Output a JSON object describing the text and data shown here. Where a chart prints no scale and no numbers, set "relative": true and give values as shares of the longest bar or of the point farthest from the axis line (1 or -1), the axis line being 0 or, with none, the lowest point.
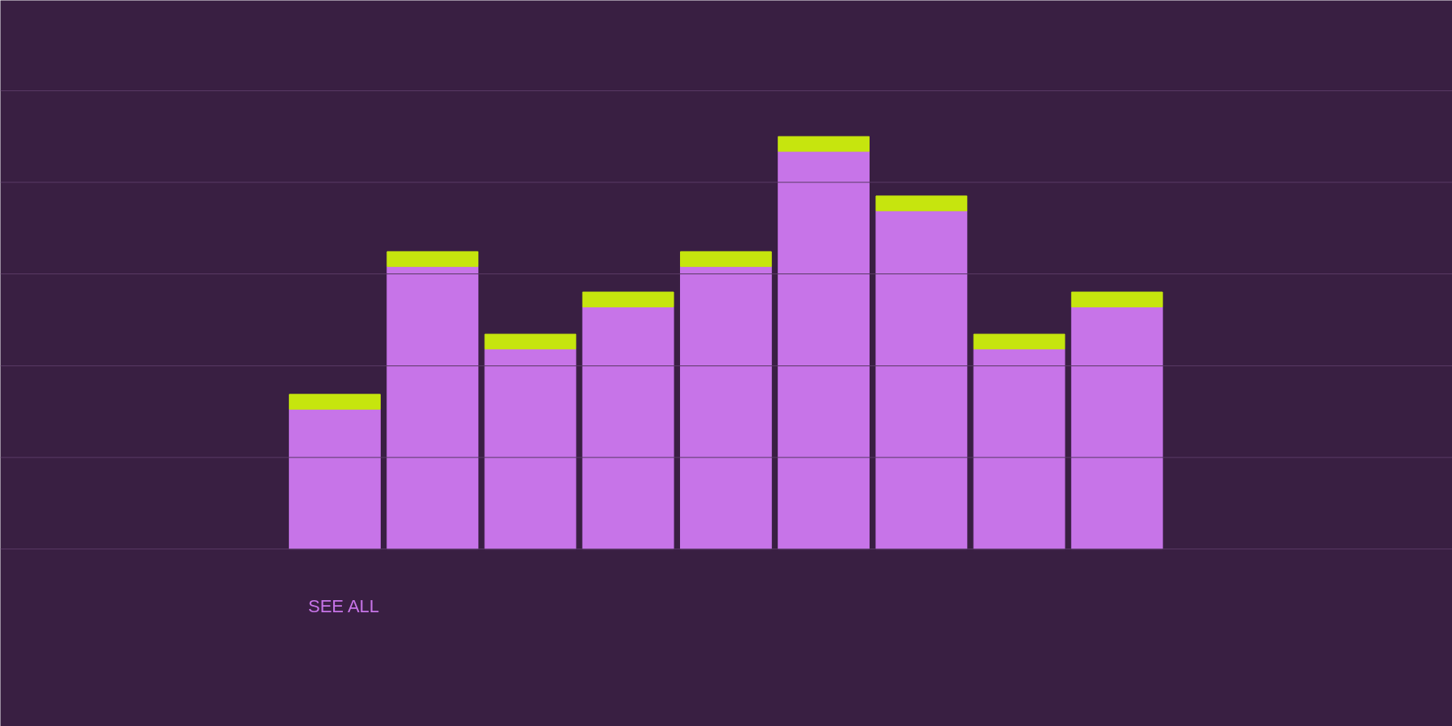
{
  "chart_data": {
    "type": "bar",
    "relative": true,
    "stacked": true,
    "legend": "bottom left",
    "categories": [
      null,
      null,
      null,
      null,
      null,
      null,
      null,
      null,
      null
    ],
    "series": [
      {
        "name": "SEE ALL",
        "color": "#c774e8",
        "values": [
          0.339,
          0.685,
          0.485,
          0.587,
          0.685,
          0.964,
          0.82,
          0.485,
          0.587
        ]
      },
      {
        "color": "#c6e50e",
        "values": [
          0.036,
          0.036,
          0.036,
          0.036,
          0.036,
          0.036,
          0.036,
          0.036,
          0.036
        ]
      }
    ],
    "ref_lines": [
      {
        "axis": "y",
        "value": 0,
        "color": "#5a3a66"
      },
      {
        "axis": "y",
        "value": 0.222,
        "color": "#5a3a66"
      },
      {
        "axis": "y",
        "value": 0.444,
        "color": "#5a3a66"
      },
      {
        "axis": "y",
        "value": 0.667,
        "color": "#5a3a66"
      },
      {
        "axis": "y",
        "value": 0.889,
        "color": "#5a3a66"
      },
      {
        "axis": "y",
        "value": 1.111,
        "color": "#5a3a66"
      }
    ]
  }
}
